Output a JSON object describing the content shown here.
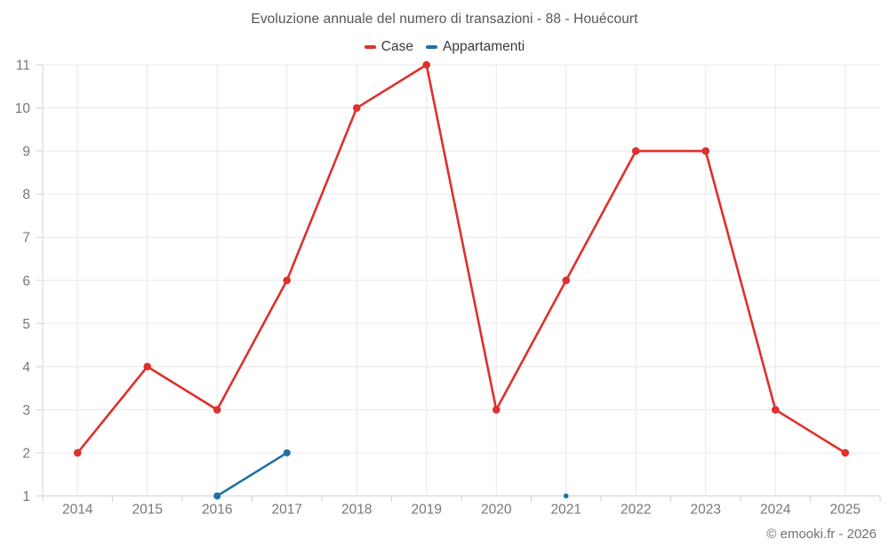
{
  "footer": {
    "copyright": "© emooki.fr - 2026"
  },
  "chart_data": {
    "type": "line",
    "title": "Evoluzione annuale del numero di transazioni - 88 - Houécourt",
    "categories": [
      "2014",
      "2015",
      "2016",
      "2017",
      "2018",
      "2019",
      "2020",
      "2021",
      "2022",
      "2023",
      "2024",
      "2025"
    ],
    "series": [
      {
        "name": "Case",
        "color": "#de302c",
        "marker_radius": 4.3,
        "values": [
          2,
          4,
          3,
          6,
          10,
          11,
          3,
          6,
          9,
          9,
          3,
          2
        ]
      },
      {
        "name": "Appartamenti",
        "color": "#1f6fa8",
        "marker_radius": 4,
        "values": [
          null,
          null,
          1,
          2,
          null,
          null,
          null,
          1,
          null,
          null,
          null,
          null
        ],
        "marker_radii": [
          null,
          null,
          4,
          4,
          null,
          null,
          null,
          2.8,
          null,
          null,
          null,
          null
        ]
      }
    ],
    "xlabel": "",
    "ylabel": "",
    "ylim": [
      1,
      11
    ],
    "y_ticks": [
      1,
      2,
      3,
      4,
      5,
      6,
      7,
      8,
      9,
      10,
      11
    ],
    "grid": true,
    "legend_position": "top"
  }
}
